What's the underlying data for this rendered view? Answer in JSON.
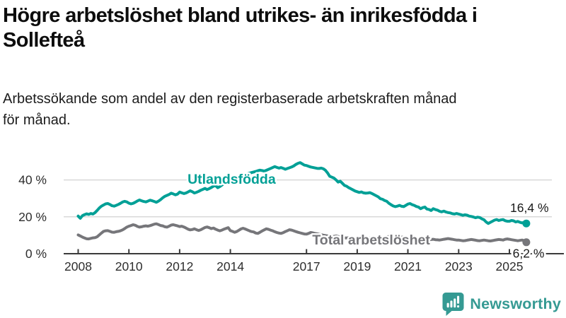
{
  "header": {
    "title_line1": "Högre arbetslöshet bland utrikes- än inrikesfödda i",
    "title_line2": "Sollefteå",
    "subtitle_line1": "Arbetssökande som andel av den registerbaserade arbetskraften månad",
    "subtitle_line2": "för månad."
  },
  "branding": {
    "name": "Newsworthy",
    "color": "#359a93",
    "icon": "bar-chart-speech-bubble-icon"
  },
  "chart_data": {
    "type": "line",
    "unit": "%",
    "x_start_year": 2008,
    "points_per_year": 12,
    "x_end_label_year": 2025.67,
    "x_ticks": [
      2008,
      2010,
      2012,
      2014,
      2017,
      2019,
      2021,
      2023,
      2025
    ],
    "y_ticks": [
      {
        "value": 0,
        "label": "0 %"
      },
      {
        "value": 20,
        "label": "20 %"
      },
      {
        "value": 40,
        "label": "40 %"
      }
    ],
    "ylim": [
      0,
      52
    ],
    "grid": "horizontal",
    "axis_color": "#3a3a3a",
    "grid_color": "#d8d8d8",
    "tick_label_color": "#2e2e2e",
    "annotation_color": "#1a1a1a",
    "series": [
      {
        "name": "Utlandsfödda",
        "color": "#00a096",
        "end_value_label": "16,4 %",
        "values": [
          20.4,
          19.2,
          20.6,
          21.2,
          21.6,
          21.3,
          21.8,
          21.5,
          22.3,
          23.5,
          24.8,
          25.8,
          26.4,
          27.0,
          27.2,
          26.7,
          26.0,
          25.8,
          26.2,
          26.7,
          27.3,
          28.0,
          28.4,
          28.1,
          27.4,
          27.0,
          27.3,
          27.9,
          28.6,
          29.1,
          28.7,
          28.3,
          28.1,
          28.5,
          29.0,
          28.7,
          28.3,
          27.9,
          28.5,
          29.3,
          30.3,
          31.1,
          31.6,
          32.1,
          32.8,
          32.4,
          31.9,
          32.3,
          33.4,
          33.0,
          32.6,
          32.9,
          33.5,
          34.1,
          33.6,
          32.9,
          33.3,
          33.8,
          34.4,
          34.9,
          35.4,
          34.8,
          35.3,
          35.9,
          36.6,
          36.9,
          35.8,
          36.4,
          37.2,
          38.0,
          38.5,
          38.7,
          39.2,
          39.6,
          40.1,
          40.6,
          41.2,
          41.8,
          42.3,
          42.7,
          43.2,
          43.6,
          44.0,
          44.3,
          44.6,
          45.0,
          45.3,
          45.1,
          44.8,
          45.2,
          45.7,
          46.2,
          46.7,
          47.2,
          46.8,
          46.4,
          46.7,
          46.3,
          45.8,
          46.2,
          46.6,
          47.0,
          47.6,
          48.4,
          49.0,
          49.4,
          48.7,
          48.0,
          47.8,
          47.4,
          47.0,
          46.8,
          46.5,
          46.3,
          46.2,
          46.4,
          46.0,
          45.2,
          43.8,
          42.0,
          41.5,
          41.0,
          40.0,
          38.8,
          39.3,
          38.2,
          37.0,
          36.6,
          35.8,
          35.2,
          34.6,
          34.0,
          33.6,
          33.2,
          33.5,
          33.0,
          32.8,
          32.9,
          33.1,
          32.6,
          32.0,
          31.4,
          30.8,
          29.8,
          29.5,
          28.8,
          28.4,
          27.3,
          26.6,
          25.9,
          25.5,
          25.8,
          26.2,
          25.7,
          25.5,
          26.2,
          26.9,
          27.2,
          26.6,
          26.2,
          25.6,
          25.3,
          24.4,
          25.0,
          25.3,
          24.2,
          24.0,
          23.4,
          24.4,
          23.9,
          23.6,
          23.0,
          22.7,
          23.1,
          22.6,
          22.3,
          22.1,
          21.7,
          21.5,
          21.8,
          21.5,
          21.2,
          20.8,
          21.1,
          20.9,
          20.4,
          20.2,
          19.9,
          19.5,
          19.8,
          19.6,
          18.9,
          18.4,
          17.2,
          16.4,
          17.0,
          17.6,
          18.2,
          18.5,
          18.0,
          18.3,
          18.5,
          17.9,
          17.6,
          17.6,
          18.0,
          17.8,
          17.2,
          17.5,
          17.0,
          16.7,
          17.0,
          16.4
        ]
      },
      {
        "name": "Total arbetslöshet",
        "color": "#76767a",
        "end_value_label": "6,2 %",
        "values": [
          10.2,
          9.6,
          9.0,
          8.5,
          8.1,
          8.0,
          8.3,
          8.6,
          8.7,
          9.2,
          10.2,
          11.2,
          12.1,
          12.4,
          12.5,
          12.1,
          11.7,
          11.6,
          11.9,
          12.1,
          12.4,
          12.9,
          13.6,
          14.4,
          14.9,
          15.3,
          15.7,
          15.4,
          14.8,
          14.4,
          14.6,
          14.9,
          15.1,
          14.9,
          15.2,
          15.6,
          16.0,
          16.2,
          15.8,
          15.3,
          15.1,
          14.6,
          14.4,
          14.9,
          15.5,
          15.7,
          15.4,
          15.1,
          14.7,
          14.9,
          14.5,
          13.9,
          13.3,
          12.9,
          13.1,
          13.5,
          13.0,
          12.6,
          13.0,
          13.6,
          14.2,
          14.5,
          14.1,
          13.6,
          13.9,
          13.3,
          12.8,
          12.4,
          12.8,
          13.3,
          13.7,
          14.1,
          12.5,
          12.1,
          11.6,
          12.0,
          12.7,
          13.4,
          13.8,
          13.4,
          12.9,
          12.4,
          12.0,
          11.8,
          11.2,
          11.0,
          11.6,
          12.3,
          12.9,
          13.5,
          13.2,
          12.8,
          12.4,
          11.9,
          11.5,
          11.2,
          11.0,
          11.4,
          12.0,
          12.5,
          13.0,
          12.8,
          12.4,
          12.0,
          11.6,
          11.3,
          11.0,
          10.7,
          10.6,
          11.0,
          11.5,
          11.3,
          11.0,
          10.8,
          10.5,
          10.3,
          10.0,
          9.8,
          9.6,
          9.4,
          9.2,
          9.4,
          9.6,
          9.3,
          9.0,
          8.8,
          8.6,
          8.5,
          8.7,
          8.9,
          8.6,
          8.4,
          8.6,
          8.8,
          8.9,
          8.7,
          8.5,
          8.3,
          8.5,
          8.7,
          8.4,
          8.2,
          8.0,
          8.2,
          8.4,
          8.6,
          9.0,
          9.4,
          9.6,
          9.8,
          9.6,
          9.4,
          9.2,
          9.0,
          8.8,
          8.6,
          8.8,
          8.6,
          8.4,
          8.2,
          8.0,
          7.9,
          7.8,
          7.7,
          7.6,
          7.5,
          7.6,
          7.7,
          7.8,
          7.6,
          7.5,
          7.4,
          7.6,
          7.8,
          8.0,
          8.2,
          8.0,
          7.8,
          7.6,
          7.4,
          7.4,
          7.2,
          7.0,
          7.1,
          7.3,
          7.5,
          7.7,
          7.5,
          7.3,
          7.1,
          7.0,
          7.2,
          7.4,
          7.2,
          7.0,
          6.9,
          7.1,
          7.3,
          7.5,
          7.7,
          7.6,
          7.4,
          7.8,
          8.0,
          7.8,
          7.6,
          7.4,
          7.2,
          7.0,
          7.2,
          7.4,
          7.0,
          6.2
        ]
      }
    ],
    "series_labels": [
      {
        "text": "Utlandsfödda",
        "x": 2014.05,
        "y": 38.0,
        "color": "#00a096",
        "anchor": "middle"
      },
      {
        "text": "Total arbetslöshet",
        "x": 2019.55,
        "y": 5.0,
        "color": "#76767a",
        "anchor": "middle"
      }
    ],
    "end_labels": [
      {
        "text": "16,4 %",
        "x": 2026.55,
        "y": 22.6,
        "anchor": "end"
      },
      {
        "text": "6,2 %",
        "x": 2026.38,
        "y": -2.2,
        "anchor": "end"
      }
    ]
  }
}
